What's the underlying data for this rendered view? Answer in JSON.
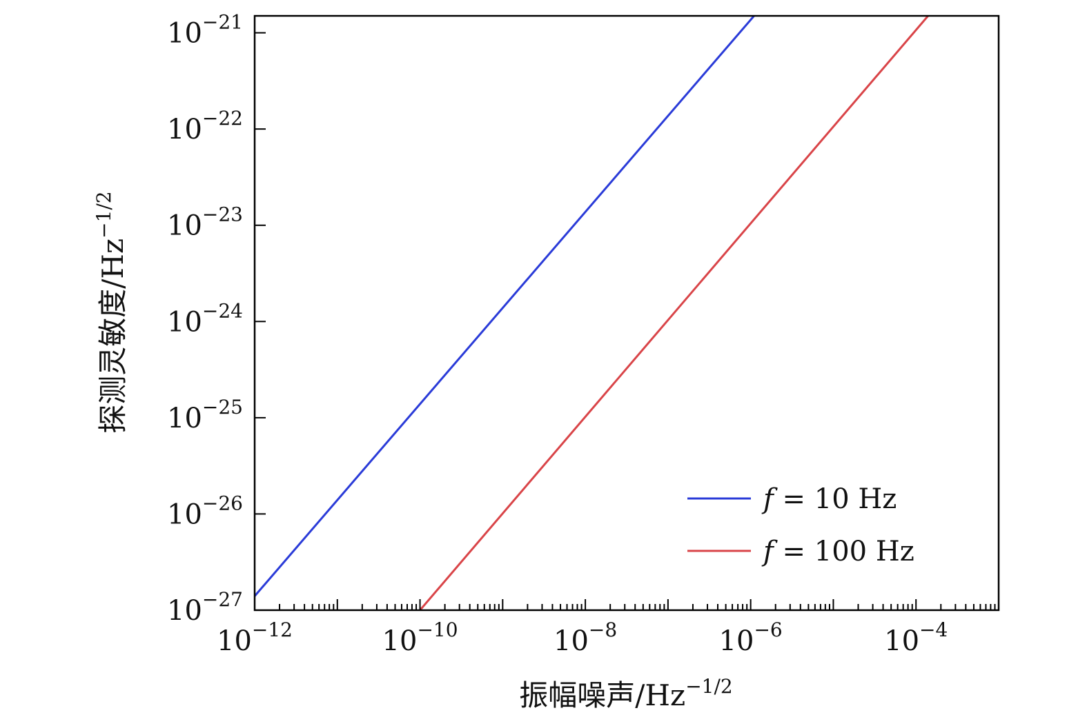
{
  "chart_data": {
    "type": "line",
    "xscale": "log",
    "yscale": "log",
    "xlabel": "振幅噪声/Hz",
    "xlabel_exp": "−1/2",
    "ylabel": "探测灵敏度/Hz",
    "ylabel_exp": "−1/2",
    "xlim": [
      1e-12,
      0.001
    ],
    "ylim": [
      1e-27,
      1.5e-21
    ],
    "xticks": [
      {
        "value": 1e-12,
        "base": "10",
        "exp": "−12"
      },
      {
        "value": 1e-10,
        "base": "10",
        "exp": "−10"
      },
      {
        "value": 1e-08,
        "base": "10",
        "exp": "−8"
      },
      {
        "value": 1e-06,
        "base": "10",
        "exp": "−6"
      },
      {
        "value": 0.0001,
        "base": "10",
        "exp": "−4"
      }
    ],
    "yticks": [
      {
        "value": 1e-27,
        "base": "10",
        "exp": "−27"
      },
      {
        "value": 1e-26,
        "base": "10",
        "exp": "−26"
      },
      {
        "value": 1e-25,
        "base": "10",
        "exp": "−25"
      },
      {
        "value": 1e-24,
        "base": "10",
        "exp": "−24"
      },
      {
        "value": 1e-23,
        "base": "10",
        "exp": "−23"
      },
      {
        "value": 1e-22,
        "base": "10",
        "exp": "−22"
      },
      {
        "value": 1e-21,
        "base": "10",
        "exp": "−21"
      }
    ],
    "legend_position": "bottom-right",
    "grid": false,
    "series": [
      {
        "name": "f = 10 Hz",
        "name_var": "f",
        "name_rest": " = 10 Hz",
        "color": "#2a3bd8",
        "x": [
          1e-12,
          1.1e-06
        ],
        "y": [
          1.4e-27,
          1.5e-21
        ]
      },
      {
        "name": "f = 100 Hz",
        "name_var": "f",
        "name_rest": " = 100 Hz",
        "color": "#d94448",
        "x": [
          1e-10,
          0.00014
        ],
        "y": [
          1e-27,
          1.5e-21
        ]
      }
    ]
  }
}
